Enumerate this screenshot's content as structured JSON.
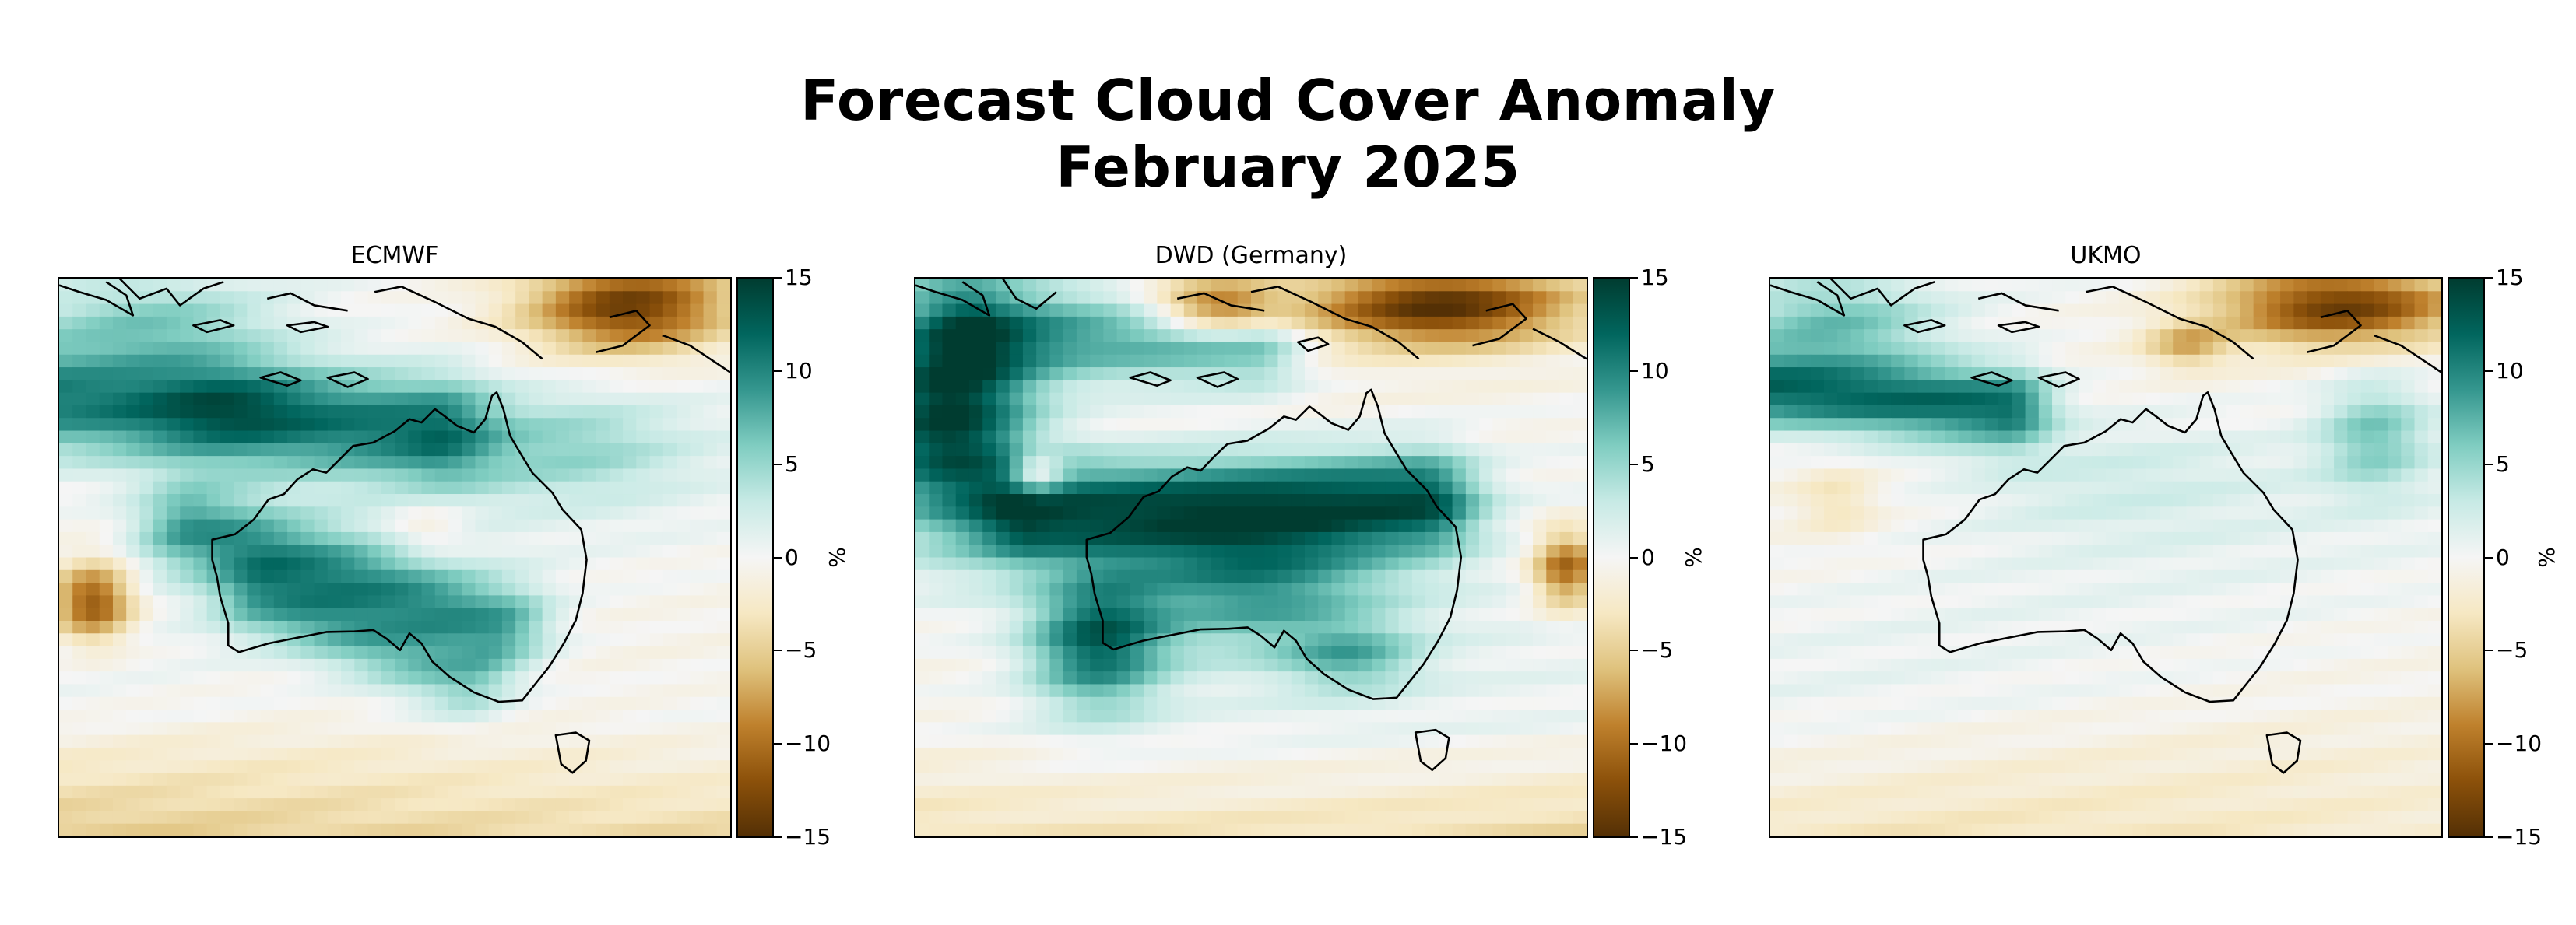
{
  "title": {
    "line1": "Forecast Cloud Cover Anomaly",
    "line2": "February 2025"
  },
  "colorbar": {
    "unit": "%",
    "ticks": [
      15,
      10,
      5,
      0,
      -5,
      -10,
      -15
    ],
    "tick_labels": [
      "15",
      "10",
      "5",
      "0",
      "−5",
      "−10",
      "−15"
    ],
    "range": [
      -15,
      15
    ],
    "colormap": "BrBG",
    "colors": [
      "#543005",
      "#8c510a",
      "#bf812d",
      "#dfc27d",
      "#f6e8c3",
      "#f5f5f5",
      "#c7eae5",
      "#80cdc1",
      "#35978f",
      "#01665e",
      "#003c30"
    ]
  },
  "panels": [
    {
      "id": "ecmwf",
      "label": "ECMWF"
    },
    {
      "id": "dwd",
      "label": "DWD (Germany)"
    },
    {
      "id": "ukmo",
      "label": "UKMO"
    }
  ]
}
